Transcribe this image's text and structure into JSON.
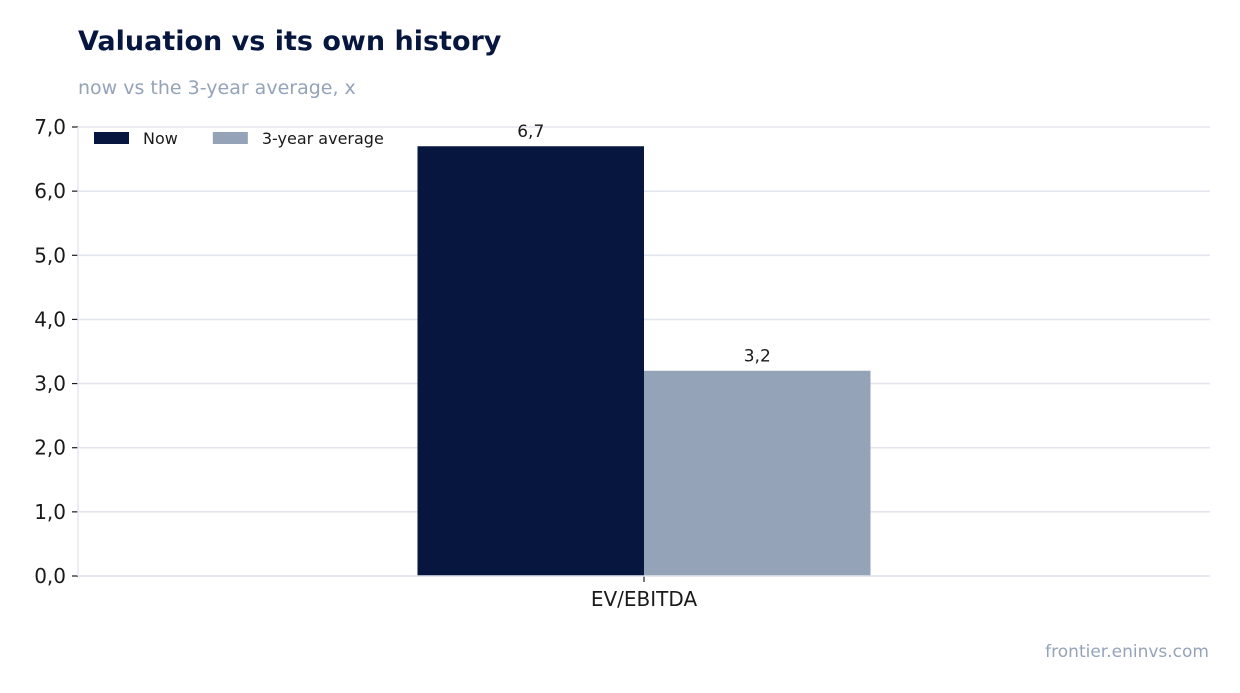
{
  "header": {
    "title": "Valuation vs its own history",
    "subtitle": "now vs the 3-year average, x"
  },
  "footer": {
    "source": "frontier.eninvs.com"
  },
  "chart_data": {
    "type": "bar",
    "title": "Valuation vs its own history",
    "subtitle": "now vs the 3-year average, x",
    "xlabel": "",
    "ylabel": "",
    "categories": [
      "EV/EBITDA"
    ],
    "series": [
      {
        "name": "Now",
        "values": [
          6.7
        ],
        "labels": [
          "6,7"
        ],
        "color": "#06163f"
      },
      {
        "name": "3-year average",
        "values": [
          3.2
        ],
        "labels": [
          "3,2"
        ],
        "color": "#95a3b8"
      }
    ],
    "ylim": [
      0,
      7
    ],
    "yticks": [
      0,
      1,
      2,
      3,
      4,
      5,
      6,
      7
    ],
    "ytick_labels": [
      "0,0",
      "1,0",
      "2,0",
      "3,0",
      "4,0",
      "5,0",
      "6,0",
      "7,0"
    ],
    "grid": true,
    "grid_color": "#e3e6ee",
    "legend": "top-left"
  }
}
